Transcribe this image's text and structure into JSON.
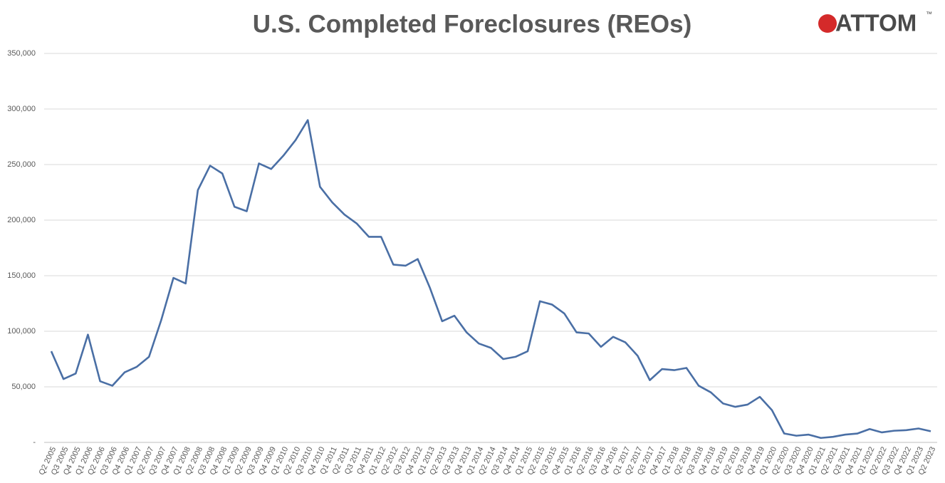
{
  "chart_data": {
    "type": "line",
    "title": "U.S. Completed Foreclosures (REOs)",
    "logo": "ATTOM",
    "logo_mark": "™",
    "categories": [
      "Q2 2005",
      "Q3 2005",
      "Q4 2005",
      "Q1 2006",
      "Q2 2006",
      "Q3 2006",
      "Q4 2006",
      "Q1 2007",
      "Q2 2007",
      "Q3 2007",
      "Q4 2007",
      "Q1 2008",
      "Q2 2008",
      "Q3 2008",
      "Q4 2008",
      "Q1 2009",
      "Q2 2009",
      "Q3 2009",
      "Q4 2009",
      "Q1 2010",
      "Q2 2010",
      "Q3 2010",
      "Q4 2010",
      "Q1 2011",
      "Q2 2011",
      "Q3 2011",
      "Q4 2011",
      "Q1 2012",
      "Q2 2012",
      "Q3 2012",
      "Q4 2012",
      "Q1 2013",
      "Q2 2013",
      "Q3 2013",
      "Q4 2013",
      "Q1 2014",
      "Q2 2014",
      "Q3 2014",
      "Q4 2014",
      "Q1 2015",
      "Q2 2015",
      "Q3 2015",
      "Q4 2015",
      "Q1 2016",
      "Q2 2016",
      "Q3 2016",
      "Q4 2016",
      "Q1 2017",
      "Q2 2017",
      "Q3 2017",
      "Q4 2017",
      "Q1 2018",
      "Q2 2018",
      "Q3 2018",
      "Q4 2018",
      "Q1 2019",
      "Q2 2019",
      "Q3 2019",
      "Q4 2019",
      "Q1 2020",
      "Q2 2020",
      "Q3 2020",
      "Q4 2020",
      "Q1 2021",
      "Q2 2021",
      "Q3 2021",
      "Q4 2021",
      "Q1 2022",
      "Q2 2022",
      "Q3 2022",
      "Q4 2022",
      "Q1 2023",
      "Q2 2023"
    ],
    "series": [
      {
        "name": "Completed Foreclosures",
        "color": "#4a6fa5",
        "values": [
          82000,
          57000,
          62000,
          97000,
          55000,
          51000,
          63000,
          68000,
          77000,
          110000,
          148000,
          143000,
          227000,
          249000,
          242000,
          212000,
          208000,
          251000,
          246000,
          258000,
          272000,
          290000,
          230000,
          216000,
          205000,
          197000,
          185000,
          185000,
          160000,
          159000,
          165000,
          139000,
          109000,
          114000,
          99000,
          89000,
          85000,
          75000,
          77000,
          82000,
          127000,
          124000,
          116000,
          99000,
          98000,
          86000,
          95000,
          90000,
          78000,
          56000,
          66000,
          65000,
          67000,
          51000,
          45000,
          35000,
          32000,
          34000,
          41000,
          29000,
          8000,
          6000,
          7000,
          4000,
          5000,
          7000,
          8000,
          12000,
          9000,
          10500,
          11000,
          12500,
          10000
        ]
      }
    ],
    "ylim": [
      0,
      350000
    ],
    "yticks": [
      {
        "value": 0,
        "label": "-"
      },
      {
        "value": 50000,
        "label": "50,000"
      },
      {
        "value": 100000,
        "label": "100,000"
      },
      {
        "value": 150000,
        "label": "150,000"
      },
      {
        "value": 200000,
        "label": "200,000"
      },
      {
        "value": 250000,
        "label": "250,000"
      },
      {
        "value": 300000,
        "label": "300,000"
      },
      {
        "value": 350000,
        "label": "350,000"
      }
    ],
    "grid": true
  }
}
